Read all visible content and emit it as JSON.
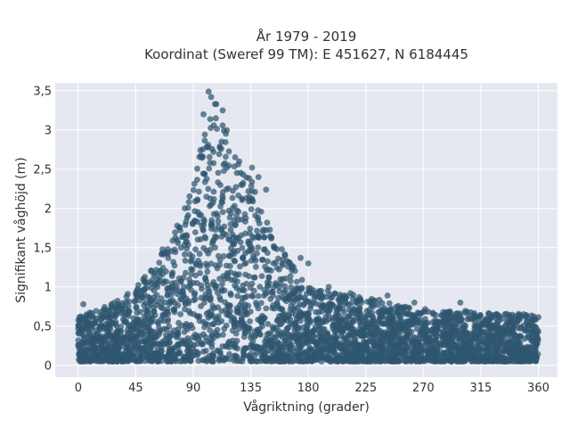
{
  "chart_data": {
    "type": "scatter",
    "title_line1": "År 1979 - 2019",
    "title_line2": "Koordinat (Sweref 99 TM): E 451627, N 6184445",
    "xlabel": "Vågriktning (grader)",
    "ylabel": "Signifikant våghöjd (m)",
    "xlim": [
      -18,
      375
    ],
    "ylim": [
      -0.15,
      3.6
    ],
    "xticks": [
      0,
      45,
      90,
      135,
      180,
      225,
      270,
      315,
      360
    ],
    "xtick_labels": [
      "0",
      "45",
      "90",
      "135",
      "180",
      "225",
      "270",
      "315",
      "360"
    ],
    "yticks": [
      0,
      0.5,
      1,
      1.5,
      2,
      2.5,
      3,
      3.5
    ],
    "ytick_labels": [
      "0",
      "0,5",
      "1",
      "1,5",
      "2",
      "2,5",
      "3",
      "3,5"
    ],
    "grid": true,
    "legend": "none",
    "marker_color": "#2f5670",
    "plot_background": "#e5e8f0",
    "upper_envelope": {
      "x": [
        0,
        15,
        30,
        45,
        60,
        75,
        90,
        100,
        105,
        110,
        120,
        130,
        135,
        140,
        150,
        165,
        180,
        195,
        210,
        225,
        240,
        255,
        270,
        285,
        300,
        315,
        330,
        345,
        360
      ],
      "y": [
        0.65,
        0.7,
        0.82,
        0.98,
        1.3,
        1.7,
        2.3,
        3.1,
        3.45,
        3.2,
        2.9,
        2.5,
        2.5,
        2.25,
        1.75,
        1.35,
        1.0,
        0.95,
        0.92,
        0.88,
        0.82,
        0.76,
        0.72,
        0.7,
        0.7,
        0.68,
        0.65,
        0.68,
        0.62
      ]
    },
    "outliers": [
      {
        "x": 102,
        "y": 3.49
      },
      {
        "x": 104,
        "y": 3.42
      },
      {
        "x": 108,
        "y": 3.33
      },
      {
        "x": 113,
        "y": 3.25
      },
      {
        "x": 98,
        "y": 3.2
      },
      {
        "x": 136,
        "y": 2.52
      },
      {
        "x": 141,
        "y": 2.4
      },
      {
        "x": 147,
        "y": 2.24
      },
      {
        "x": 136,
        "y": 2.22
      },
      {
        "x": 153,
        "y": 1.52
      },
      {
        "x": 174,
        "y": 1.37
      },
      {
        "x": 180,
        "y": 1.3
      },
      {
        "x": 196,
        "y": 1.0
      },
      {
        "x": 213,
        "y": 0.92
      },
      {
        "x": 242,
        "y": 0.89
      },
      {
        "x": 263,
        "y": 0.8
      },
      {
        "x": 299,
        "y": 0.8
      },
      {
        "x": 4,
        "y": 0.78
      },
      {
        "x": 57,
        "y": 1.2
      },
      {
        "x": 66,
        "y": 1.48
      }
    ]
  }
}
